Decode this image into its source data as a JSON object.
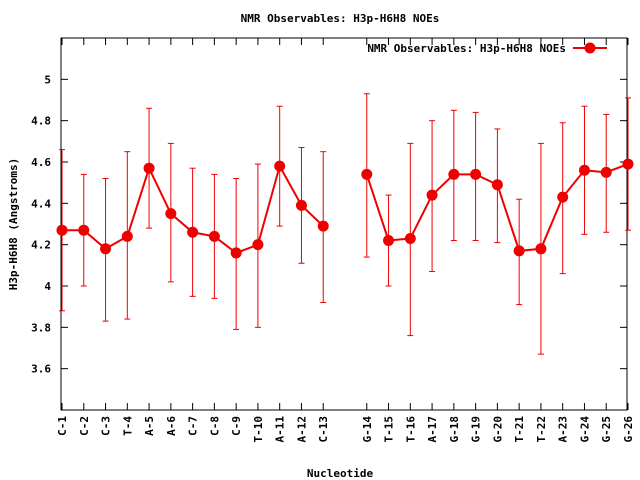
{
  "chart_data": {
    "type": "line",
    "title": "NMR Observables: H3p-H6H8 NOEs",
    "xlabel": "Nucleotide",
    "ylabel": "H3p-H6H8 (Angstroms)",
    "legend": {
      "label": "NMR Observables: H3p-H6H8 NOEs",
      "position": "top-right"
    },
    "ylim": [
      3.4,
      5.2
    ],
    "yticks": [
      3.6,
      3.8,
      4,
      4.2,
      4.4,
      4.6,
      4.8,
      5
    ],
    "ytick_labels": [
      "3.6",
      "3.8",
      "4",
      "4.2",
      "4.4",
      "4.6",
      "4.8",
      "5"
    ],
    "grid": false,
    "series_color": "#ee0000",
    "categories": [
      "C-1",
      "C-2",
      "C-3",
      "T-4",
      "A-5",
      "A-6",
      "C-7",
      "C-8",
      "C-9",
      "T-10",
      "A-11",
      "A-12",
      "C-13",
      "",
      "G-14",
      "T-15",
      "T-16",
      "A-17",
      "G-18",
      "G-19",
      "G-20",
      "T-21",
      "T-22",
      "A-23",
      "G-24",
      "G-25",
      "G-26"
    ],
    "series": [
      {
        "name": "NMR Observables: H3p-H6H8 NOEs",
        "values": [
          4.27,
          4.27,
          4.18,
          4.24,
          4.57,
          4.35,
          4.26,
          4.24,
          4.16,
          4.2,
          4.58,
          4.39,
          4.29,
          null,
          4.54,
          4.22,
          4.23,
          4.44,
          4.54,
          4.54,
          4.49,
          4.17,
          4.18,
          4.43,
          4.56,
          4.55,
          4.59
        ],
        "err_low": [
          3.88,
          4.0,
          3.83,
          3.84,
          4.28,
          4.02,
          3.95,
          3.94,
          3.79,
          3.8,
          4.29,
          4.11,
          3.92,
          null,
          4.14,
          4.0,
          3.76,
          4.07,
          4.22,
          4.22,
          4.21,
          3.91,
          3.67,
          4.06,
          4.25,
          4.26,
          4.27
        ],
        "err_high": [
          4.66,
          4.54,
          4.52,
          4.65,
          4.86,
          4.69,
          4.57,
          4.54,
          4.52,
          4.59,
          4.87,
          4.67,
          4.65,
          null,
          4.93,
          4.44,
          4.69,
          4.8,
          4.85,
          4.84,
          4.76,
          4.42,
          4.69,
          4.79,
          4.87,
          4.83,
          4.91
        ]
      }
    ]
  }
}
